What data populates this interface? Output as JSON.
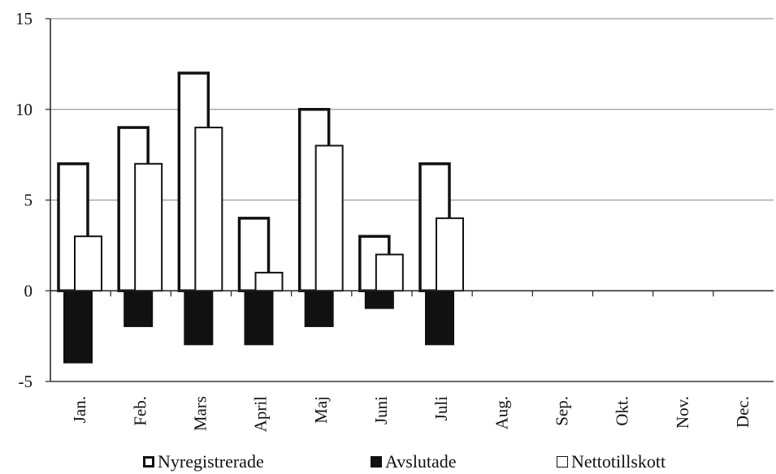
{
  "chart_data": {
    "type": "bar",
    "categories": [
      "Jan.",
      "Feb.",
      "Mars",
      "April",
      "Maj",
      "Juni",
      "Juli",
      "Aug.",
      "Sep.",
      "Okt.",
      "Nov.",
      "Dec."
    ],
    "series": [
      {
        "name": "Nyregistrerade",
        "values": [
          7,
          9,
          12,
          4,
          10,
          3,
          7,
          null,
          null,
          null,
          null,
          null
        ]
      },
      {
        "name": "Avslutade",
        "values": [
          -4,
          -2,
          -3,
          -3,
          -2,
          -1,
          -3,
          null,
          null,
          null,
          null,
          null
        ]
      },
      {
        "name": "Nettotillskott",
        "values": [
          3,
          7,
          9,
          1,
          8,
          2,
          4,
          null,
          null,
          null,
          null,
          null
        ]
      }
    ],
    "yticks": [
      "-5",
      "0",
      "5",
      "10",
      "15"
    ],
    "ylim": [
      -5,
      15
    ],
    "grid": true,
    "legend_position": "bottom",
    "colors": {
      "Nyregistrerade": "#ffffff",
      "Avslutade": "#111111",
      "Nettotillskott": "#ffffff",
      "grid": "#9a9a9a"
    }
  }
}
